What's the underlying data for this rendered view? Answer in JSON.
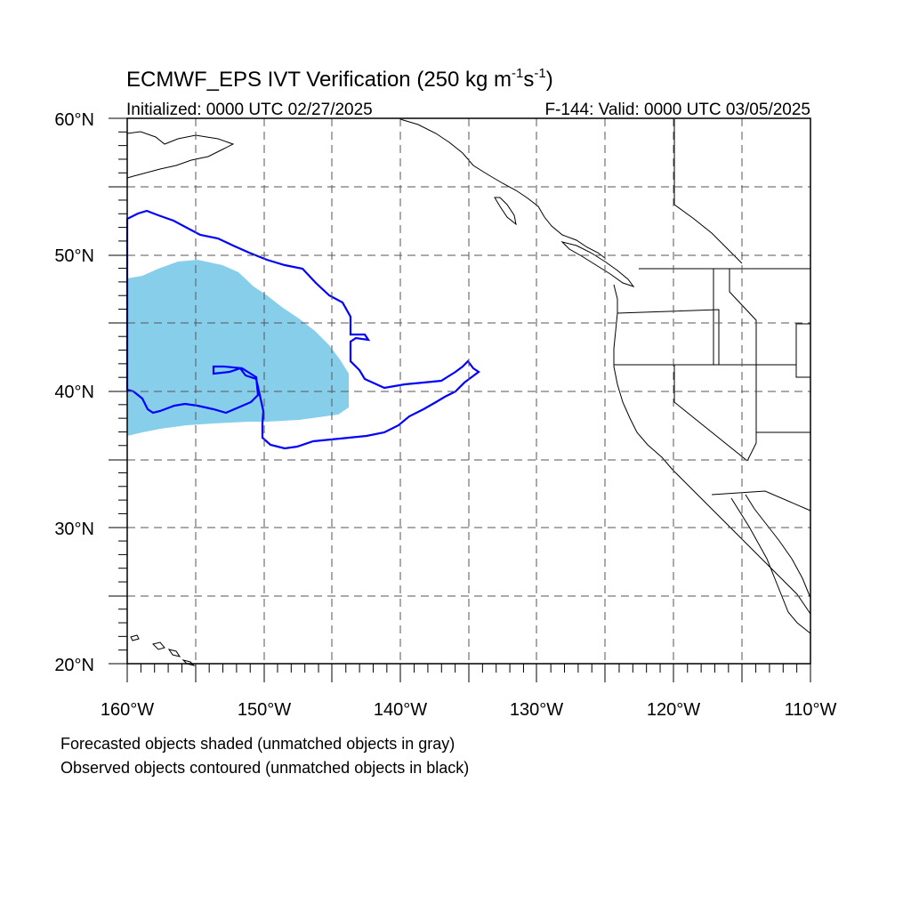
{
  "title": {
    "main": "ECMWF_EPS IVT Verification (250 kg m",
    "sup1": "-1",
    "mid": "s",
    "sup2": "-1",
    "end": ")"
  },
  "subtitle": {
    "initialized": "Initialized: 0000 UTC 02/27/2025",
    "valid": "F-144: Valid: 0000 UTC 03/05/2025"
  },
  "map": {
    "lon_range": [
      -160,
      -110
    ],
    "lat_range": [
      20,
      60
    ],
    "lon_ticks": [
      {
        "value": -160,
        "label": "160°W"
      },
      {
        "value": -150,
        "label": "150°W"
      },
      {
        "value": -140,
        "label": "140°W"
      },
      {
        "value": -130,
        "label": "130°W"
      },
      {
        "value": -120,
        "label": "120°W"
      },
      {
        "value": -110,
        "label": "110°W"
      }
    ],
    "lat_ticks": [
      {
        "value": 60,
        "label": "60°N"
      },
      {
        "value": 50,
        "label": "50°N"
      },
      {
        "value": 40,
        "label": "40°N"
      },
      {
        "value": 30,
        "label": "30°N"
      },
      {
        "value": 20,
        "label": "20°N"
      }
    ],
    "forecast_fill_color": "#87ceeb",
    "observed_contour_color": "#0000ff",
    "coastline_color": "#000000",
    "grid_style": "dashed gray every 5 degrees"
  },
  "legend": {
    "line1": "Forecasted objects shaded (unmatched objects in gray)",
    "line2": "Observed objects contoured (unmatched objects in black)"
  }
}
